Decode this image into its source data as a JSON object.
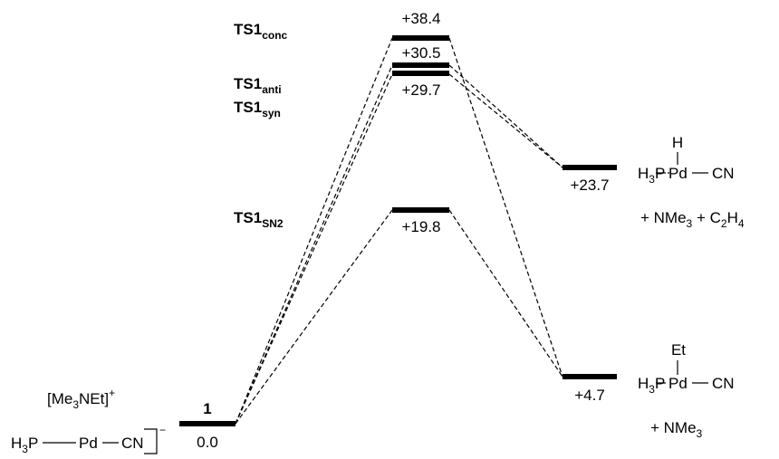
{
  "diagram": {
    "states": [
      {
        "id": "r1",
        "label": "1",
        "value": "0.0"
      },
      {
        "id": "ts_conc",
        "label_main": "TS1",
        "label_sub": "conc",
        "value": "+38.4"
      },
      {
        "id": "ts_anti",
        "label_main": "TS1",
        "label_sub": "anti",
        "value": "+30.5"
      },
      {
        "id": "ts_syn",
        "label_main": "TS1",
        "label_sub": "syn",
        "value": "+29.7"
      },
      {
        "id": "ts_sn2",
        "label_main": "TS1",
        "label_sub": "SN2",
        "value": "+19.8"
      },
      {
        "id": "p_hydride",
        "value": "+23.7"
      },
      {
        "id": "p_ethyl",
        "value": "+4.7"
      }
    ],
    "reactant": {
      "cation_main": "[Me",
      "cation_sub3": "3",
      "cation_rest": "NEt]",
      "cation_charge": "+",
      "anion_h": "H",
      "anion_h_sub": "3",
      "anion_p": "P",
      "anion_pd": "Pd",
      "anion_cn": "CN",
      "anion_charge": "−"
    },
    "product_hydride": {
      "top": "H",
      "left_h": "H",
      "left_sub": "3",
      "left_p": "P",
      "metal": "Pd",
      "right": "CN",
      "byproduct_a": "+ NMe",
      "byproduct_a_sub": "3",
      "byproduct_b": " + C",
      "byproduct_b_sub": "2",
      "byproduct_c": "H",
      "byproduct_c_sub": "4"
    },
    "product_ethyl": {
      "top": "Et",
      "left_h": "H",
      "left_sub": "3",
      "left_p": "P",
      "metal": "Pd",
      "right": "CN",
      "byproduct_a": "+ NMe",
      "byproduct_a_sub": "3"
    }
  }
}
